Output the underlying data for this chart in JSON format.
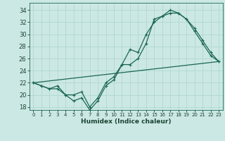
{
  "xlabel": "Humidex (Indice chaleur)",
  "bg_color": "#cce8e4",
  "grid_color": "#b0d8d0",
  "line_color": "#1a6655",
  "x_ticks": [
    0,
    1,
    2,
    3,
    4,
    5,
    6,
    7,
    8,
    9,
    10,
    11,
    12,
    13,
    14,
    15,
    16,
    17,
    18,
    19,
    20,
    21,
    22,
    23
  ],
  "y_ticks": [
    18,
    20,
    22,
    24,
    26,
    28,
    30,
    32,
    34
  ],
  "ylim": [
    17.5,
    35.2
  ],
  "xlim": [
    -0.5,
    23.5
  ],
  "line1_x": [
    0,
    1,
    2,
    3,
    4,
    5,
    6,
    7,
    8,
    9,
    10,
    11,
    12,
    13,
    14,
    15,
    16,
    17,
    18,
    19,
    20,
    21,
    22,
    23
  ],
  "line1_y": [
    22,
    21.5,
    21,
    21.5,
    20,
    19,
    19.5,
    17.5,
    19,
    21.5,
    22.5,
    25,
    27.5,
    27,
    30,
    32,
    33,
    33.5,
    33.5,
    32.5,
    31,
    29,
    27,
    25.5
  ],
  "line2_x": [
    0,
    1,
    2,
    3,
    4,
    5,
    6,
    7,
    8,
    9,
    10,
    11,
    12,
    13,
    14,
    15,
    16,
    17,
    18,
    19,
    20,
    21,
    22,
    23
  ],
  "line2_y": [
    22,
    21.5,
    21,
    21,
    20,
    20,
    20.5,
    18,
    19.5,
    22,
    23,
    25,
    25,
    26,
    28.5,
    32.5,
    33,
    34,
    33.5,
    32.5,
    30.5,
    28.5,
    26.5,
    25.5
  ],
  "line3_x": [
    0,
    23
  ],
  "line3_y": [
    22,
    25.5
  ],
  "xtick_fontsize": 5.0,
  "ytick_fontsize": 6.0,
  "xlabel_fontsize": 6.5
}
